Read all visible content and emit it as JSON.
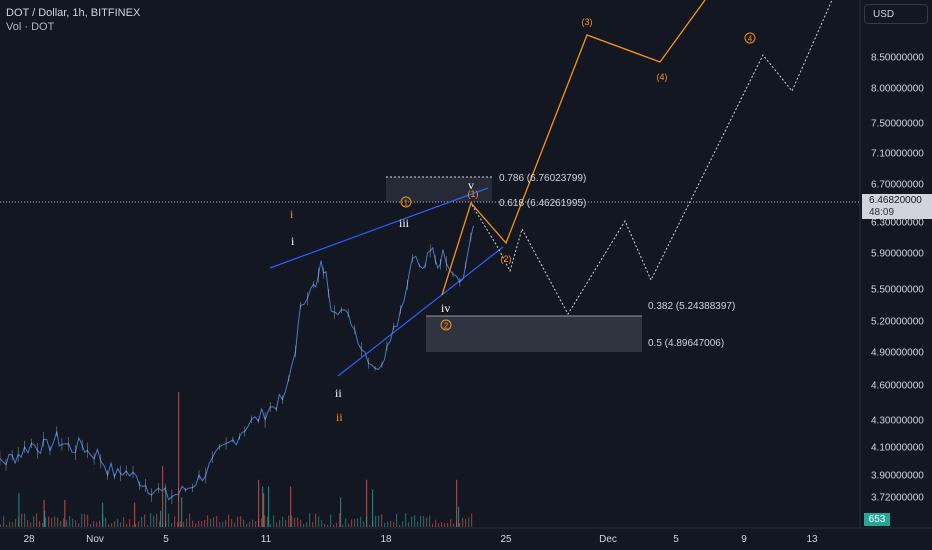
{
  "legend": {
    "title": "DOT / Dollar, 1h, BITFINEX",
    "volume_label": "Vol · DOT"
  },
  "toolbar": {
    "currency": "USD"
  },
  "current_price": {
    "value": "6.46820000",
    "countdown": "48:09"
  },
  "volume_tag": "653",
  "colors": {
    "background": "#131722",
    "grid": "#1e222d",
    "text": "#d1d4dc",
    "price": "#4a78c8",
    "wedge": "#2962ff",
    "orange": "#f7931a",
    "white": "#ffffff",
    "fib_box": "#2a2e39",
    "vol_up": "#26a69a",
    "vol_down": "#ef5350"
  },
  "chart_data": {
    "type": "line",
    "title": "DOT / Dollar, 1h, BITFINEX",
    "x_ticks": [
      "28",
      "Nov",
      "5",
      "11",
      "18",
      "25",
      "Dec",
      "5",
      "9",
      "13"
    ],
    "y_ticks": [
      8.5,
      8.0,
      7.5,
      7.1,
      6.7,
      6.3,
      5.9,
      5.5,
      5.2,
      4.9,
      4.6,
      4.3,
      4.1,
      3.9,
      3.72
    ],
    "y_tick_labels": [
      "8.50000000",
      "8.00000000",
      "7.50000000",
      "7.10000000",
      "6.70000000",
      "6.30000000",
      "5.90000000",
      "5.50000000",
      "5.20000000",
      "4.90000000",
      "4.60000000",
      "4.30000000",
      "4.10000000",
      "3.90000000",
      "3.72000000"
    ],
    "grid": false,
    "series": [
      {
        "values_x": [
          -6,
          -3,
          0,
          3,
          5,
          8,
          10,
          11,
          13,
          15,
          16,
          18,
          20,
          22,
          23,
          25,
          27,
          28,
          30,
          32,
          34,
          36,
          38,
          40,
          42,
          44,
          46,
          47,
          49,
          51,
          52,
          55,
          57,
          58,
          60,
          61,
          62,
          63,
          64,
          66,
          68,
          70,
          72,
          74,
          75,
          77,
          79,
          80,
          82,
          83,
          84,
          85,
          86,
          88,
          90,
          91,
          92
        ],
        "values": [
          4.0,
          4.02,
          4.0,
          4.06,
          4.12,
          4.1,
          4.16,
          4.13,
          4.09,
          4.12,
          4.07,
          4.05,
          3.95,
          3.9,
          3.93,
          3.89,
          3.84,
          3.8,
          3.77,
          3.72,
          3.75,
          3.8,
          3.87,
          3.95,
          4.05,
          4.12,
          4.2,
          4.25,
          4.3,
          4.36,
          4.4,
          4.5,
          4.95,
          5.3,
          5.55,
          5.5,
          5.77,
          5.65,
          5.35,
          5.3,
          5.2,
          4.95,
          4.8,
          4.75,
          5.0,
          5.2,
          5.55,
          5.9,
          5.7,
          5.85,
          5.95,
          5.75,
          5.9,
          5.7,
          5.6,
          5.95,
          6.25
        ]
      }
    ],
    "volume": [
      {
        "x": 18.3,
        "v": 0.25
      },
      {
        "x": 43.5,
        "v": 0.2
      },
      {
        "x": 44,
        "v": 0.12
      },
      {
        "x": 64.2,
        "v": 0.2
      },
      {
        "x": 102,
        "v": 0.18
      },
      {
        "x": 134,
        "v": 0.18
      },
      {
        "x": 160,
        "v": 0.12
      },
      {
        "x": 162,
        "v": 0.45
      },
      {
        "x": 165,
        "v": 0.3
      },
      {
        "x": 178,
        "v": 1.0
      },
      {
        "x": 181,
        "v": 0.22
      },
      {
        "x": 258,
        "v": 0.35
      },
      {
        "x": 262,
        "v": 0.3
      },
      {
        "x": 263,
        "v": 0.25
      },
      {
        "x": 268,
        "v": 0.3
      },
      {
        "x": 290,
        "v": 0.3
      },
      {
        "x": 340,
        "v": 0.22
      },
      {
        "x": 366,
        "v": 0.35
      },
      {
        "x": 372,
        "v": 0.28
      },
      {
        "x": 456,
        "v": 0.35
      },
      {
        "x": 458,
        "v": 0.15
      }
    ],
    "annotations": {
      "fib_levels": [
        {
          "label": "0.786 (6.76023799)",
          "value": 6.76023799
        },
        {
          "label": "0.618 (6.46261995)",
          "value": 6.46261995
        },
        {
          "label": "0.382 (5.24388397)",
          "value": 5.24388397
        },
        {
          "label": "0.5 (4.89647006)",
          "value": 4.89647006
        }
      ],
      "white_wave_labels": [
        "i",
        "ii",
        "iii",
        "iv",
        "v"
      ],
      "orange_wave_labels": [
        "i",
        "ii",
        "1",
        "2",
        "(1)",
        "(2)",
        "(3)",
        "(4)",
        "4"
      ]
    }
  }
}
